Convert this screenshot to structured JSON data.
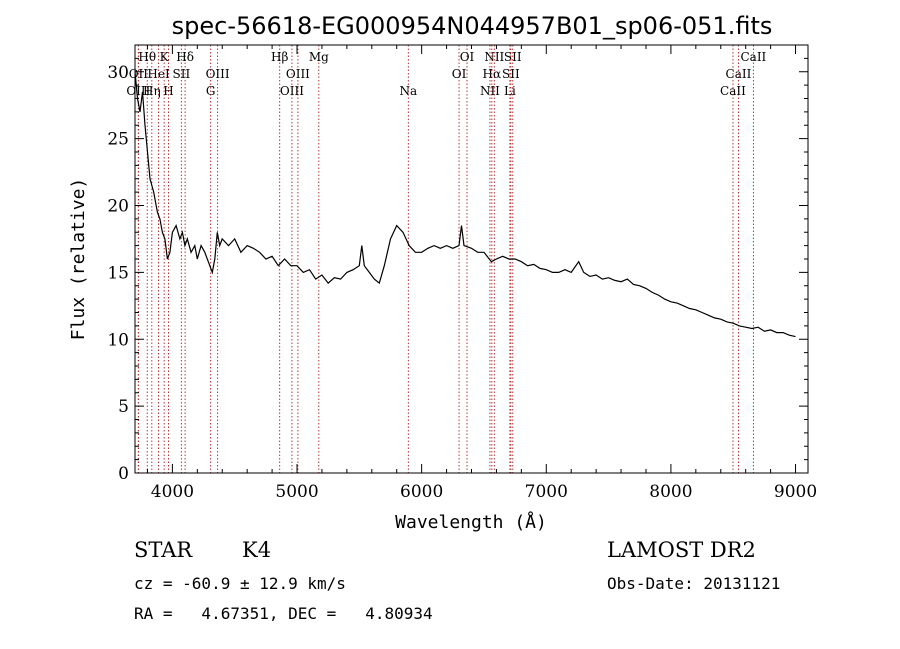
{
  "chart_data": {
    "type": "line",
    "title": "spec-56618-EG000954N044957B01_sp06-051.fits",
    "xlabel": "Wavelength (Å)",
    "ylabel": "Flux (relative)",
    "xlim": [
      3700,
      9100
    ],
    "ylim": [
      0,
      32
    ],
    "xticks": [
      4000,
      5000,
      6000,
      7000,
      8000,
      9000
    ],
    "yticks": [
      0,
      5,
      10,
      15,
      20,
      25,
      30
    ],
    "series": [
      {
        "points": [
          [
            3700,
            30
          ],
          [
            3720,
            28
          ],
          [
            3740,
            27
          ],
          [
            3760,
            28.5
          ],
          [
            3780,
            26
          ],
          [
            3800,
            24
          ],
          [
            3820,
            22
          ],
          [
            3850,
            21
          ],
          [
            3880,
            19.5
          ],
          [
            3900,
            19
          ],
          [
            3920,
            18
          ],
          [
            3940,
            17.5
          ],
          [
            3960,
            16
          ],
          [
            3980,
            16.5
          ],
          [
            4000,
            18
          ],
          [
            4030,
            18.5
          ],
          [
            4060,
            17.5
          ],
          [
            4080,
            18
          ],
          [
            4100,
            17
          ],
          [
            4120,
            17.5
          ],
          [
            4150,
            16.5
          ],
          [
            4180,
            17
          ],
          [
            4200,
            16
          ],
          [
            4230,
            17
          ],
          [
            4260,
            16.5
          ],
          [
            4300,
            15.5
          ],
          [
            4320,
            15
          ],
          [
            4340,
            16
          ],
          [
            4360,
            18
          ],
          [
            4380,
            17
          ],
          [
            4400,
            17.5
          ],
          [
            4450,
            17
          ],
          [
            4500,
            17.5
          ],
          [
            4550,
            16.5
          ],
          [
            4600,
            17
          ],
          [
            4650,
            16.8
          ],
          [
            4700,
            16.5
          ],
          [
            4750,
            16
          ],
          [
            4800,
            16.2
          ],
          [
            4850,
            15.5
          ],
          [
            4900,
            16
          ],
          [
            4950,
            15.5
          ],
          [
            5000,
            15.5
          ],
          [
            5050,
            15
          ],
          [
            5100,
            15.2
          ],
          [
            5150,
            14.5
          ],
          [
            5200,
            14.8
          ],
          [
            5250,
            14.2
          ],
          [
            5300,
            14.6
          ],
          [
            5350,
            14.5
          ],
          [
            5400,
            15
          ],
          [
            5450,
            15.2
          ],
          [
            5500,
            15.5
          ],
          [
            5520,
            17
          ],
          [
            5540,
            15.5
          ],
          [
            5580,
            15
          ],
          [
            5620,
            14.5
          ],
          [
            5660,
            14.2
          ],
          [
            5700,
            15.5
          ],
          [
            5750,
            17.5
          ],
          [
            5800,
            18.5
          ],
          [
            5850,
            18
          ],
          [
            5900,
            17
          ],
          [
            5950,
            16.5
          ],
          [
            6000,
            16.5
          ],
          [
            6050,
            16.8
          ],
          [
            6100,
            17
          ],
          [
            6150,
            16.8
          ],
          [
            6200,
            17
          ],
          [
            6250,
            16.8
          ],
          [
            6300,
            17
          ],
          [
            6320,
            18.5
          ],
          [
            6340,
            17
          ],
          [
            6400,
            16.8
          ],
          [
            6450,
            16.5
          ],
          [
            6500,
            16.5
          ],
          [
            6560,
            15.8
          ],
          [
            6600,
            16
          ],
          [
            6650,
            16.2
          ],
          [
            6700,
            16
          ],
          [
            6750,
            16
          ],
          [
            6800,
            15.8
          ],
          [
            6850,
            15.5
          ],
          [
            6900,
            15.6
          ],
          [
            6950,
            15.3
          ],
          [
            7000,
            15.2
          ],
          [
            7050,
            15
          ],
          [
            7100,
            15
          ],
          [
            7150,
            15.2
          ],
          [
            7200,
            15
          ],
          [
            7260,
            15.8
          ],
          [
            7300,
            15
          ],
          [
            7350,
            14.7
          ],
          [
            7400,
            14.8
          ],
          [
            7450,
            14.5
          ],
          [
            7500,
            14.6
          ],
          [
            7550,
            14.4
          ],
          [
            7600,
            14.3
          ],
          [
            7650,
            14.5
          ],
          [
            7700,
            14.1
          ],
          [
            7750,
            14
          ],
          [
            7800,
            13.8
          ],
          [
            7850,
            13.5
          ],
          [
            7900,
            13.3
          ],
          [
            7950,
            13
          ],
          [
            8000,
            12.8
          ],
          [
            8050,
            12.7
          ],
          [
            8100,
            12.5
          ],
          [
            8150,
            12.3
          ],
          [
            8200,
            12.2
          ],
          [
            8250,
            12
          ],
          [
            8300,
            11.8
          ],
          [
            8350,
            11.6
          ],
          [
            8400,
            11.5
          ],
          [
            8450,
            11.3
          ],
          [
            8500,
            11.2
          ],
          [
            8550,
            11
          ],
          [
            8600,
            10.9
          ],
          [
            8650,
            10.8
          ],
          [
            8700,
            10.9
          ],
          [
            8750,
            10.6
          ],
          [
            8800,
            10.7
          ],
          [
            8850,
            10.5
          ],
          [
            8900,
            10.5
          ],
          [
            8950,
            10.3
          ],
          [
            9000,
            10.2
          ]
        ]
      }
    ],
    "line_ids": [
      {
        "label": "Hθ",
        "wave": 3798,
        "row": 0
      },
      {
        "label": "OII",
        "wave": 3727,
        "row": 1
      },
      {
        "label": "OIII",
        "wave": 3727,
        "row": 2
      },
      {
        "label": "K",
        "wave": 3934,
        "row": 0
      },
      {
        "label": "HeI",
        "wave": 3889,
        "row": 1
      },
      {
        "label": "Hη",
        "wave": 3835,
        "row": 2
      },
      {
        "label": "Hδ",
        "wave": 4102,
        "row": 0
      },
      {
        "label": "SII",
        "wave": 4072,
        "row": 1
      },
      {
        "label": "H",
        "wave": 3969,
        "row": 2
      },
      {
        "label": "OIII",
        "wave": 4363,
        "row": 1
      },
      {
        "label": "G",
        "wave": 4307,
        "row": 2
      },
      {
        "label": "Hβ",
        "wave": 4861,
        "row": 0
      },
      {
        "label": "OIII",
        "wave": 5007,
        "row": 1
      },
      {
        "label": "OIII",
        "wave": 4959,
        "row": 2
      },
      {
        "label": "Mg",
        "wave": 5175,
        "row": 0
      },
      {
        "label": "Na",
        "wave": 5893,
        "row": 2
      },
      {
        "label": "OI",
        "wave": 6364,
        "row": 0
      },
      {
        "label": "OI",
        "wave": 6300,
        "row": 1
      },
      {
        "label": "NII",
        "wave": 6583,
        "row": 0
      },
      {
        "label": "Hα",
        "wave": 6563,
        "row": 1
      },
      {
        "label": "NII",
        "wave": 6548,
        "row": 2
      },
      {
        "label": "SII",
        "wave": 6731,
        "row": 0
      },
      {
        "label": "SII",
        "wave": 6716,
        "row": 1
      },
      {
        "label": "Li",
        "wave": 6708,
        "row": 2
      },
      {
        "label": "CaII",
        "wave": 8662,
        "row": 0
      },
      {
        "label": "CaII",
        "wave": 8542,
        "row": 1
      },
      {
        "label": "CaII",
        "wave": 8498,
        "row": 2
      }
    ],
    "grid": false,
    "legend": "none"
  },
  "info": {
    "object_class": "STAR",
    "subclass": "K4",
    "survey": "LAMOST DR2",
    "cz": "cz = -60.9 ± 12.9 km/s",
    "obs_date": "Obs-Date: 20131121",
    "radec": "RA =   4.67351, DEC =   4.80934"
  }
}
